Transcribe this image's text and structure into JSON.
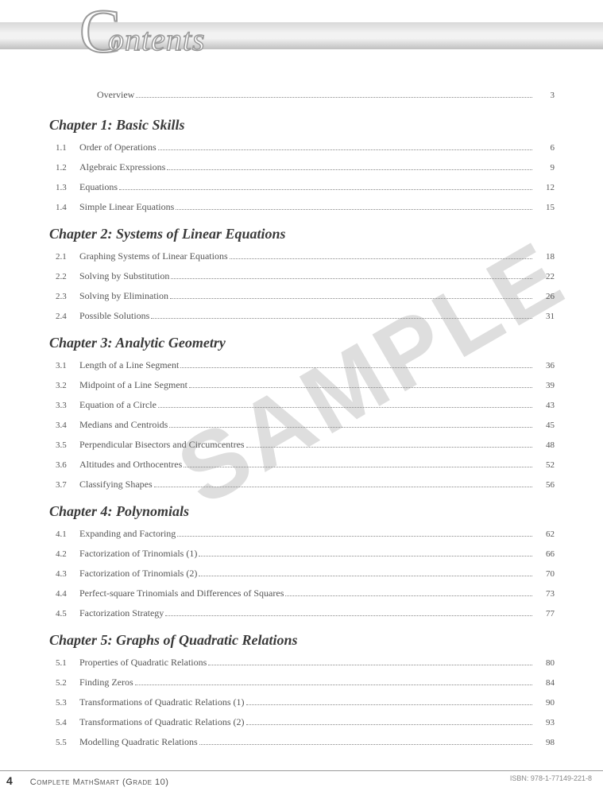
{
  "header": {
    "big_letter": "C",
    "rest": "ontents"
  },
  "watermark": "SAMPLE",
  "overview": {
    "label": "Overview",
    "page": "3"
  },
  "chapters": [
    {
      "title": "Chapter 1: Basic Skills",
      "items": [
        {
          "num": "1.1",
          "label": "Order of Operations",
          "page": "6"
        },
        {
          "num": "1.2",
          "label": "Algebraic Expressions",
          "page": "9"
        },
        {
          "num": "1.3",
          "label": "Equations",
          "page": "12"
        },
        {
          "num": "1.4",
          "label": "Simple Linear Equations",
          "page": "15"
        }
      ]
    },
    {
      "title": "Chapter 2: Systems of Linear Equations",
      "items": [
        {
          "num": "2.1",
          "label": "Graphing Systems of Linear Equations",
          "page": "18"
        },
        {
          "num": "2.2",
          "label": "Solving by Substitution",
          "page": "22"
        },
        {
          "num": "2.3",
          "label": "Solving by Elimination",
          "page": "26"
        },
        {
          "num": "2.4",
          "label": "Possible Solutions",
          "page": "31"
        }
      ]
    },
    {
      "title": "Chapter 3: Analytic Geometry",
      "items": [
        {
          "num": "3.1",
          "label": "Length of a Line Segment",
          "page": "36"
        },
        {
          "num": "3.2",
          "label": "Midpoint of a Line Segment",
          "page": "39"
        },
        {
          "num": "3.3",
          "label": "Equation of a Circle",
          "page": "43"
        },
        {
          "num": "3.4",
          "label": "Medians and Centroids",
          "page": "45"
        },
        {
          "num": "3.5",
          "label": "Perpendicular Bisectors and Circumcentres",
          "page": "48"
        },
        {
          "num": "3.6",
          "label": "Altitudes and Orthocentres",
          "page": "52"
        },
        {
          "num": "3.7",
          "label": "Classifying Shapes",
          "page": "56"
        }
      ]
    },
    {
      "title": "Chapter 4: Polynomials",
      "items": [
        {
          "num": "4.1",
          "label": "Expanding and Factoring",
          "page": "62"
        },
        {
          "num": "4.2",
          "label": "Factorization of Trinomials (1)",
          "page": "66"
        },
        {
          "num": "4.3",
          "label": "Factorization of Trinomials (2)",
          "page": "70"
        },
        {
          "num": "4.4",
          "label": "Perfect-square Trinomials and Differences of Squares",
          "page": "73"
        },
        {
          "num": "4.5",
          "label": "Factorization Strategy",
          "page": "77"
        }
      ]
    },
    {
      "title": "Chapter 5: Graphs of Quadratic Relations",
      "items": [
        {
          "num": "5.1",
          "label": "Properties of Quadratic Relations",
          "page": "80"
        },
        {
          "num": "5.2",
          "label": "Finding Zeros",
          "page": "84"
        },
        {
          "num": "5.3",
          "label": "Transformations of Quadratic Relations (1)",
          "page": "90"
        },
        {
          "num": "5.4",
          "label": "Transformations of Quadratic Relations (2)",
          "page": "93"
        },
        {
          "num": "5.5",
          "label": "Modelling Quadratic Relations",
          "page": "98"
        }
      ]
    }
  ],
  "footer": {
    "page_number": "4",
    "book_title": "Complete MathSmart (Grade 10)",
    "isbn": "ISBN: 978-1-77149-221-8"
  }
}
